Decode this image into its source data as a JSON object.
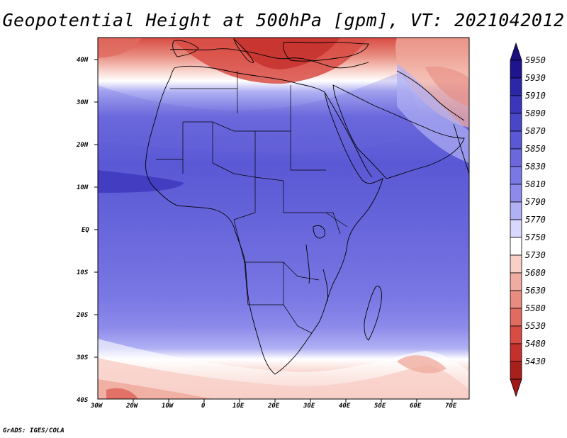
{
  "title": "Geopotential Height at 500hPa [gpm], VT: 2021042012",
  "credit": "GrADS: IGES/COLA",
  "latitude_labels": [
    "40N",
    "30N",
    "20N",
    "10N",
    "EQ",
    "10S",
    "20S",
    "30S",
    "40S"
  ],
  "longitude_labels": [
    "30W",
    "20W",
    "10W",
    "0",
    "10E",
    "20E",
    "30E",
    "40E",
    "50E",
    "60E",
    "70E"
  ],
  "colorbar": {
    "levels": [
      "5950",
      "5930",
      "5910",
      "5890",
      "5870",
      "5850",
      "5830",
      "5810",
      "5790",
      "5770",
      "5750",
      "5730",
      "5680",
      "5630",
      "5580",
      "5530",
      "5480",
      "5430"
    ],
    "colors": [
      "#1e1490",
      "#2c26a8",
      "#3c36bc",
      "#4a46c8",
      "#5a58d4",
      "#6a68dc",
      "#7a78e4",
      "#8c8aea",
      "#b0b0f4",
      "#d8d8fc",
      "#ffffff",
      "#f8d0c8",
      "#f0aca0",
      "#e88c80",
      "#e06c60",
      "#d84c44",
      "#c4302c",
      "#a8201c"
    ],
    "top_arrow_color": "#1a0e80",
    "bottom_arrow_color": "#a01818"
  },
  "map": {
    "extent_lon": [
      -30,
      75
    ],
    "extent_lat": [
      -40,
      45
    ]
  }
}
